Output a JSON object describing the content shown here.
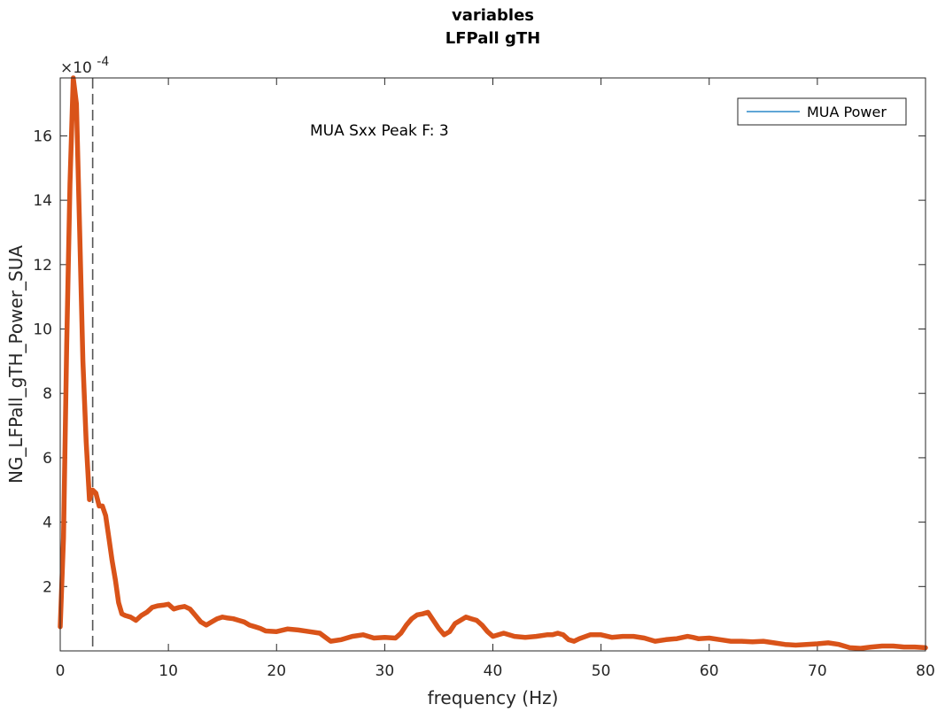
{
  "chart_data": {
    "type": "line",
    "title": [
      "variables",
      "LFPall gTH"
    ],
    "xlabel": "frequency (Hz)",
    "ylabel": "NG_LFPall_gTH_Power_SUA",
    "y_exponent_label": "×10",
    "y_exponent_power": "-4",
    "xlim": [
      0,
      80
    ],
    "ylim": [
      0,
      17.8
    ],
    "x_ticks": [
      0,
      10,
      20,
      30,
      40,
      50,
      60,
      70,
      80
    ],
    "y_ticks": [
      2,
      4,
      6,
      8,
      10,
      12,
      14,
      16
    ],
    "grid": false,
    "legend_position": "top-right",
    "legend_entries": [
      "MUA Power"
    ],
    "legend_line_color": "#0072BD",
    "annotation": "MUA Sxx Peak F: 3",
    "peak_marker_x": 3,
    "series": [
      {
        "color": "#D95319",
        "x": [
          0,
          0.3,
          0.6,
          0.9,
          1.2,
          1.5,
          1.8,
          2.1,
          2.4,
          2.7,
          3.0,
          3.3,
          3.6,
          3.9,
          4.2,
          4.5,
          4.8,
          5.1,
          5.4,
          5.7,
          6.0,
          6.5,
          7.0,
          7.5,
          8.0,
          8.5,
          9.0,
          9.5,
          10.0,
          10.5,
          11.0,
          11.5,
          12.0,
          12.5,
          13.0,
          13.5,
          14.0,
          14.5,
          15.0,
          15.5,
          16.0,
          16.5,
          17.0,
          17.5,
          18.0,
          18.5,
          19.0,
          20.0,
          21.0,
          22.0,
          23.0,
          24.0,
          25.0,
          26.0,
          27.0,
          28.0,
          29.0,
          30.0,
          31.0,
          31.5,
          32.0,
          32.5,
          33.0,
          33.5,
          34.0,
          34.5,
          35.0,
          35.5,
          36.0,
          36.5,
          37.0,
          37.5,
          38.0,
          38.5,
          39.0,
          39.5,
          40.0,
          41.0,
          42.0,
          43.0,
          44.0,
          45.0,
          45.5,
          46.0,
          46.5,
          47.0,
          47.5,
          48.0,
          49.0,
          50.0,
          51.0,
          52.0,
          53.0,
          54.0,
          55.0,
          56.0,
          57.0,
          58.0,
          58.5,
          59.0,
          60.0,
          61.0,
          62.0,
          63.0,
          64.0,
          65.0,
          66.0,
          67.0,
          68.0,
          69.0,
          70.0,
          71.0,
          72.0,
          73.0,
          74.0,
          75.0,
          76.0,
          77.0,
          78.0,
          79.0,
          80.0
        ],
        "y": [
          0.75,
          3.5,
          9.5,
          14.5,
          17.8,
          17.0,
          13.0,
          9.0,
          6.5,
          4.7,
          5.0,
          4.9,
          4.5,
          4.5,
          4.2,
          3.5,
          2.8,
          2.2,
          1.5,
          1.15,
          1.1,
          1.05,
          0.95,
          1.1,
          1.2,
          1.35,
          1.4,
          1.42,
          1.45,
          1.3,
          1.35,
          1.38,
          1.3,
          1.1,
          0.9,
          0.8,
          0.9,
          1.0,
          1.05,
          1.02,
          1.0,
          0.95,
          0.9,
          0.8,
          0.75,
          0.7,
          0.62,
          0.6,
          0.68,
          0.65,
          0.6,
          0.55,
          0.3,
          0.35,
          0.45,
          0.5,
          0.4,
          0.42,
          0.4,
          0.55,
          0.8,
          1.0,
          1.12,
          1.15,
          1.2,
          0.95,
          0.7,
          0.5,
          0.6,
          0.85,
          0.95,
          1.05,
          1.0,
          0.95,
          0.8,
          0.6,
          0.45,
          0.55,
          0.45,
          0.42,
          0.45,
          0.5,
          0.5,
          0.55,
          0.5,
          0.35,
          0.3,
          0.38,
          0.5,
          0.5,
          0.42,
          0.45,
          0.45,
          0.4,
          0.3,
          0.35,
          0.38,
          0.45,
          0.42,
          0.38,
          0.4,
          0.35,
          0.3,
          0.3,
          0.28,
          0.3,
          0.25,
          0.2,
          0.18,
          0.2,
          0.22,
          0.25,
          0.2,
          0.1,
          0.08,
          0.12,
          0.15,
          0.15,
          0.12,
          0.12,
          0.1
        ]
      }
    ]
  }
}
